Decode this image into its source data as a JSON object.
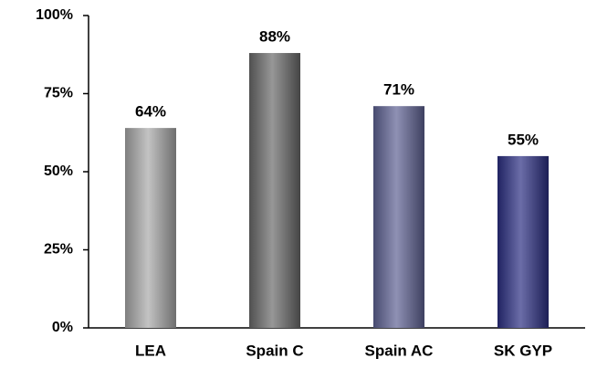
{
  "chart_data": {
    "type": "bar",
    "categories": [
      "LEA",
      "Spain C",
      "Spain AC",
      "SK GYP"
    ],
    "values": [
      64,
      88,
      71,
      55
    ],
    "value_labels": [
      "64%",
      "88%",
      "71%",
      "55%"
    ],
    "colors": [
      "#a9a9a9",
      "#6a6a6a",
      "#5f6294",
      "#2b2e82"
    ],
    "ylim": [
      0,
      100
    ],
    "yticks": [
      {
        "value": 0,
        "label": "0%"
      },
      {
        "value": 25,
        "label": "25%"
      },
      {
        "value": 50,
        "label": "50%"
      },
      {
        "value": 75,
        "label": "75%"
      },
      {
        "value": 100,
        "label": "100%"
      }
    ],
    "grid": false
  }
}
